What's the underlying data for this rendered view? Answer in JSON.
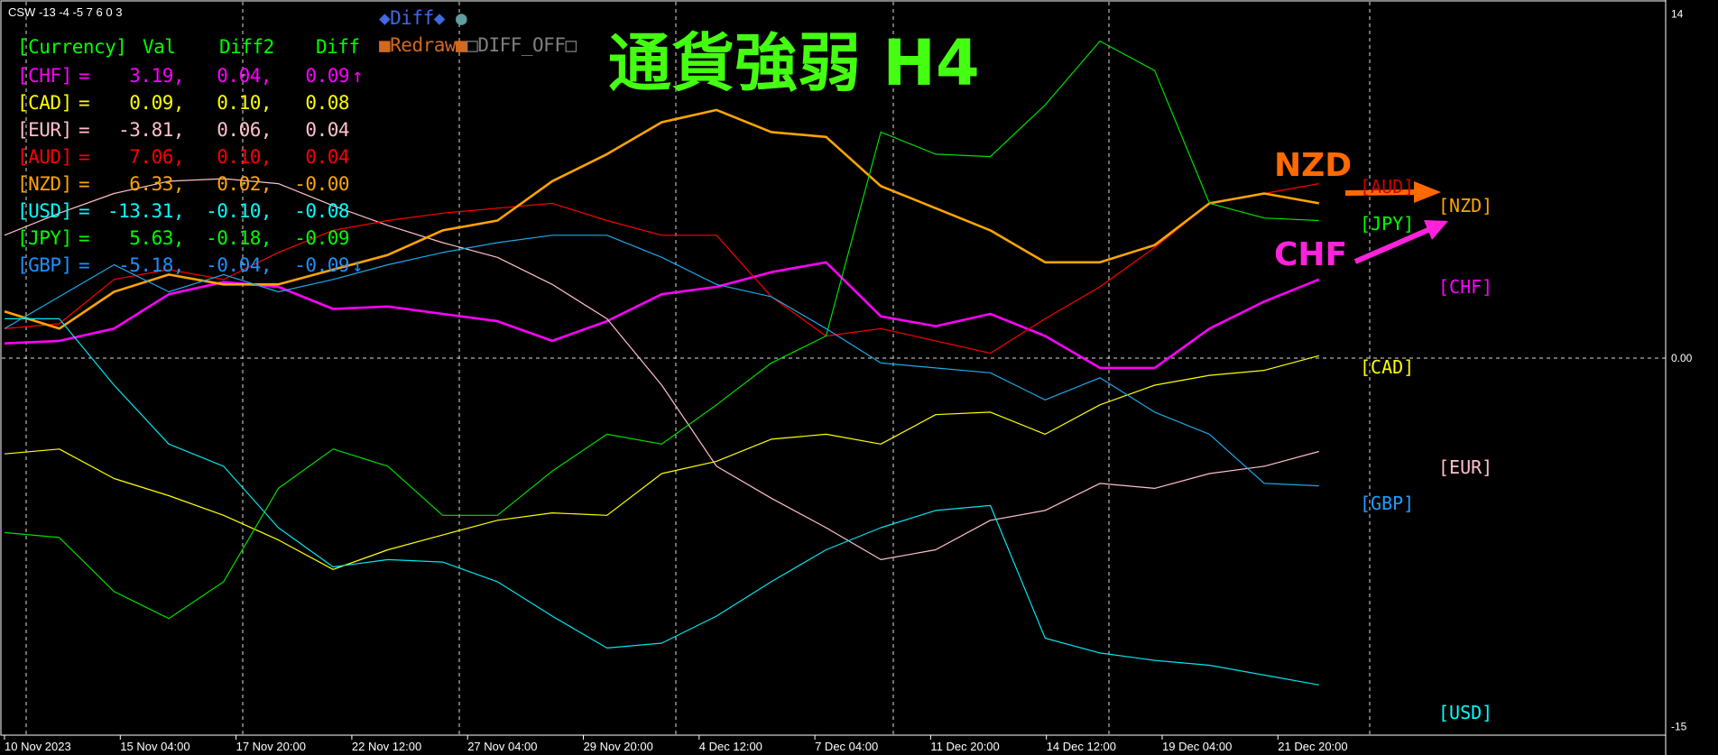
{
  "indicator_name": "CSW -13 -4 -5 7 6 0 3",
  "title": "通貨強弱 H4",
  "controls": {
    "diff_icon_left": "diamond-icon",
    "diff_label": "Diff",
    "diff_icon_right": "diamond-icon",
    "circle_icon": "circle-icon",
    "redraw_label": "Redraw",
    "diff_off_label": "DIFF_OFF",
    "colors": {
      "diff": "#4169e1",
      "circle": "#5f9ea0",
      "redraw": "#d2691e",
      "diff_off": "#808080"
    }
  },
  "table": {
    "headers": [
      "[Currency]",
      "Val",
      "Diff2",
      "Diff"
    ],
    "rows": [
      {
        "cur": "[CHF]",
        "eq": "=",
        "val": "3.19,",
        "diff2": "0.04,",
        "diff": "0.09",
        "arrow": "↑",
        "color": "#ff00ff"
      },
      {
        "cur": "[CAD]",
        "eq": "=",
        "val": "0.09,",
        "diff2": "0.10,",
        "diff": "0.08",
        "arrow": "",
        "color": "#ffff00"
      },
      {
        "cur": "[EUR]",
        "eq": "=",
        "val": "-3.81,",
        "diff2": "0.06,",
        "diff": "0.04",
        "arrow": "",
        "color": "#ffc0cb"
      },
      {
        "cur": "[AUD]",
        "eq": "=",
        "val": "7.06,",
        "diff2": "0.10,",
        "diff": "0.04",
        "arrow": "",
        "color": "#ff0000"
      },
      {
        "cur": "[NZD]",
        "eq": "=",
        "val": "6.33,",
        "diff2": "0.02,",
        "diff": "-0.00",
        "arrow": "",
        "color": "#ffa500"
      },
      {
        "cur": "[USD]",
        "eq": "=",
        "val": "-13.31,",
        "diff2": "-0.10,",
        "diff": "-0.08",
        "arrow": "",
        "color": "#00ffff"
      },
      {
        "cur": "[JPY]",
        "eq": "=",
        "val": "5.63,",
        "diff2": "-0.18,",
        "diff": "-0.09",
        "arrow": "",
        "color": "#00ff00"
      },
      {
        "cur": "[GBP]",
        "eq": "=",
        "val": "-5.18,",
        "diff2": "-0.04,",
        "diff": "-0.09",
        "arrow": "↓",
        "color": "#1e90ff"
      }
    ]
  },
  "annotations": {
    "nzd": {
      "text": "NZD",
      "color": "#ff6a00",
      "icon": "arrow-right-icon"
    },
    "chf": {
      "text": "CHF",
      "color": "#ff22dd",
      "icon": "arrow-up-right-icon"
    }
  },
  "end_labels": [
    "[AUD]",
    "[NZD]",
    "[JPY]",
    "[CHF]",
    "[CAD]",
    "[EUR]",
    "[GBP]",
    "[USD]"
  ],
  "chart_data": {
    "type": "line",
    "title": "通貨強弱 H4",
    "ylim": [
      -15,
      14
    ],
    "y_ticks": [
      "14",
      "0.00",
      "-15"
    ],
    "x_ticks": [
      "10 Nov 2023",
      "15 Nov 04:00",
      "17 Nov 20:00",
      "22 Nov 12:00",
      "27 Nov 04:00",
      "29 Nov 20:00",
      "4 Dec 12:00",
      "7 Dec 04:00",
      "11 Dec 20:00",
      "14 Dec 12:00",
      "19 Dec 04:00",
      "21 Dec 20:00"
    ],
    "grid": "dashed vertical lines and dashed zero line",
    "series": [
      {
        "name": "CHF",
        "color": "#ff00ff",
        "thick": true,
        "values": [
          0.6,
          0.7,
          1.2,
          2.6,
          3.1,
          2.9,
          2.0,
          2.1,
          1.8,
          1.5,
          0.7,
          1.5,
          2.6,
          2.9,
          3.5,
          3.9,
          1.7,
          1.3,
          1.8,
          0.9,
          -0.4,
          -0.4,
          1.2,
          2.3,
          3.2
        ]
      },
      {
        "name": "CAD",
        "color": "#ffff00",
        "thick": false,
        "values": [
          -3.9,
          -3.7,
          -4.9,
          -5.6,
          -6.4,
          -7.4,
          -8.6,
          -7.8,
          -7.2,
          -6.6,
          -6.3,
          -6.4,
          -4.7,
          -4.2,
          -3.3,
          -3.1,
          -3.5,
          -2.3,
          -2.2,
          -3.1,
          -1.9,
          -1.1,
          -0.7,
          -0.5,
          0.1
        ]
      },
      {
        "name": "EUR",
        "color": "#ffc0cb",
        "thick": false,
        "values": [
          5.0,
          5.9,
          6.7,
          7.2,
          7.3,
          7.1,
          6.2,
          5.4,
          4.7,
          4.1,
          3.0,
          1.6,
          -1.1,
          -4.4,
          -5.7,
          -6.9,
          -8.2,
          -7.8,
          -6.6,
          -6.2,
          -5.1,
          -5.3,
          -4.7,
          -4.4,
          -3.8
        ]
      },
      {
        "name": "AUD",
        "color": "#ff0000",
        "thick": false,
        "values": [
          1.2,
          1.4,
          3.2,
          3.6,
          3.2,
          4.3,
          5.2,
          5.6,
          5.9,
          6.1,
          6.3,
          5.6,
          5.0,
          5.0,
          2.5,
          0.9,
          1.2,
          0.7,
          0.2,
          1.6,
          2.9,
          4.5,
          6.3,
          6.7,
          7.1
        ]
      },
      {
        "name": "NZD",
        "color": "#ffa500",
        "thick": true,
        "values": [
          1.9,
          1.2,
          2.7,
          3.4,
          3.0,
          3.0,
          3.6,
          4.2,
          5.2,
          5.6,
          7.2,
          8.3,
          9.6,
          10.1,
          9.2,
          9.0,
          7.0,
          6.1,
          5.2,
          3.9,
          3.9,
          4.6,
          6.3,
          6.7,
          6.3
        ]
      },
      {
        "name": "USD",
        "color": "#00e5ee",
        "thick": false,
        "values": [
          1.6,
          1.6,
          -1.1,
          -3.5,
          -4.4,
          -6.9,
          -8.5,
          -8.2,
          -8.3,
          -9.1,
          -10.5,
          -11.8,
          -11.6,
          -10.5,
          -9.1,
          -7.8,
          -6.9,
          -6.2,
          -6.0,
          -11.4,
          -12.0,
          -12.3,
          -12.5,
          -12.9,
          -13.3
        ]
      },
      {
        "name": "JPY",
        "color": "#00dd00",
        "thick": false,
        "values": [
          -7.1,
          -7.3,
          -9.5,
          -10.6,
          -9.1,
          -5.3,
          -3.7,
          -4.4,
          -6.4,
          -6.4,
          -4.6,
          -3.1,
          -3.5,
          -1.9,
          -0.2,
          0.9,
          9.2,
          8.3,
          8.2,
          10.3,
          12.9,
          11.7,
          6.3,
          5.7,
          5.6
        ]
      },
      {
        "name": "GBP",
        "color": "#1ea8e8",
        "thick": false,
        "values": [
          1.2,
          2.5,
          3.8,
          2.7,
          3.4,
          2.7,
          3.2,
          3.8,
          4.3,
          4.7,
          5.0,
          5.0,
          4.1,
          3.0,
          2.5,
          1.2,
          -0.2,
          -0.4,
          -0.6,
          -1.7,
          -0.8,
          -2.2,
          -3.1,
          -5.1,
          -5.2
        ]
      }
    ]
  }
}
